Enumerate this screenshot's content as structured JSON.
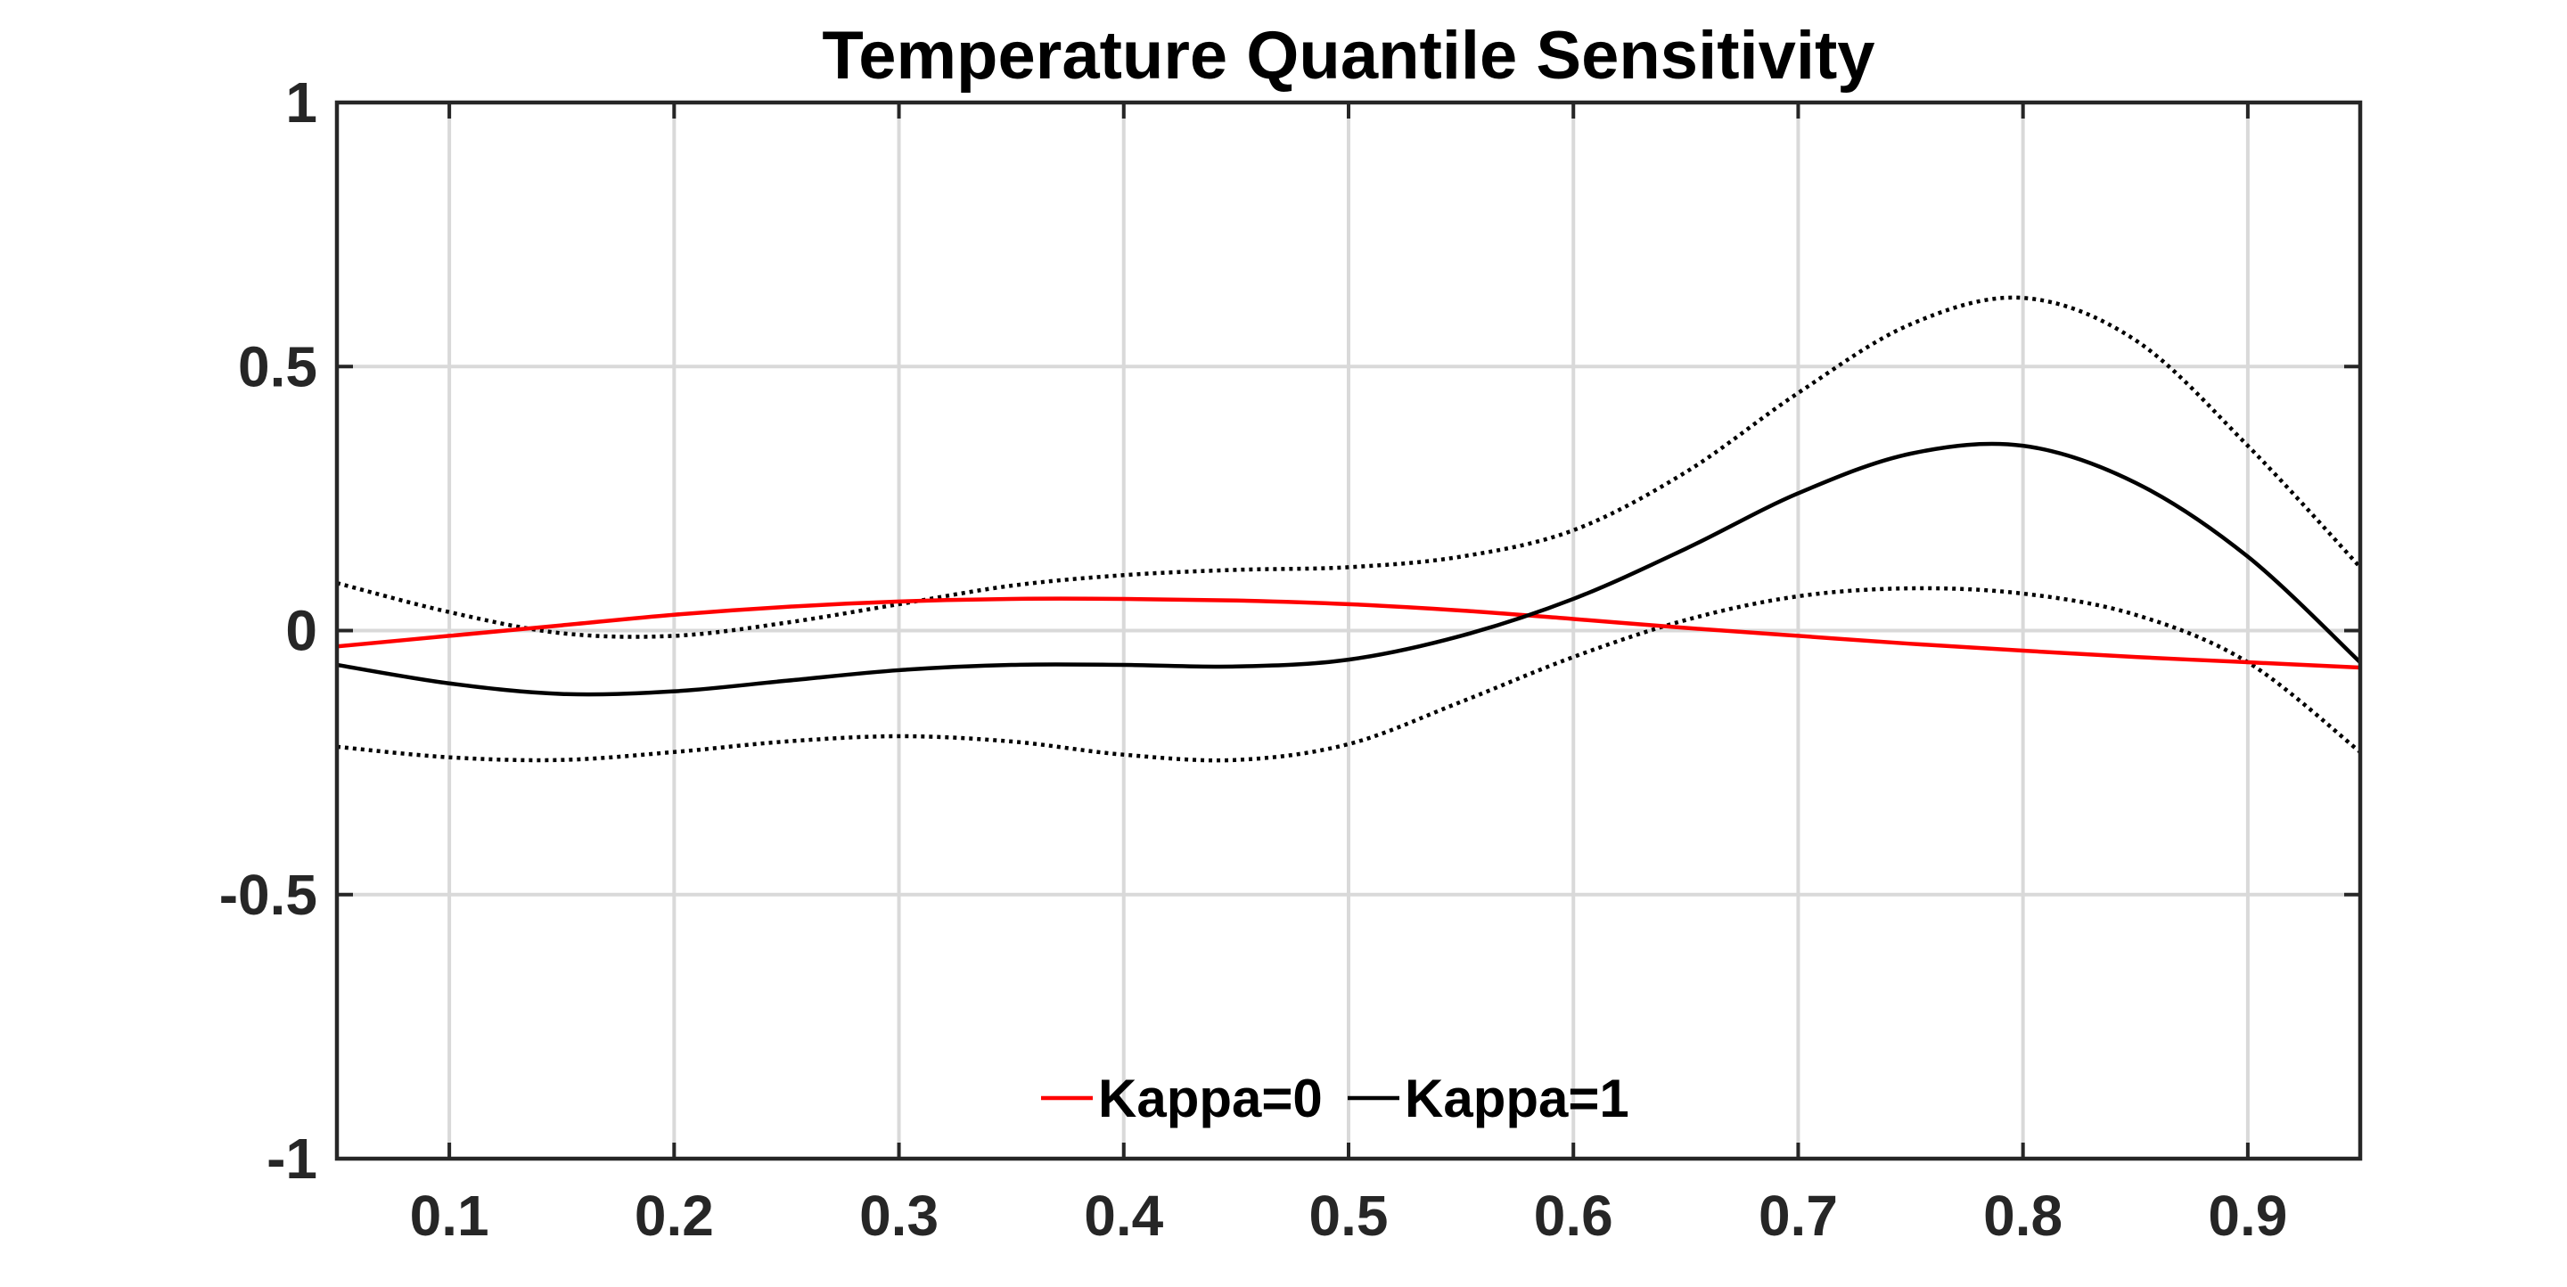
{
  "chart_data": {
    "type": "line",
    "title": "Temperature Quantile Sensitivity",
    "xlabel": "",
    "ylabel": "",
    "xlim": [
      0.05,
      0.95
    ],
    "ylim": [
      -1,
      1
    ],
    "grid": true,
    "legend_position": "bottom-center",
    "xticks": [
      0.1,
      0.2,
      0.3,
      0.4,
      0.5,
      0.6,
      0.7,
      0.8,
      0.9
    ],
    "xtick_labels": [
      "0.1",
      "0.2",
      "0.3",
      "0.4",
      "0.5",
      "0.6",
      "0.7",
      "0.8",
      "0.9"
    ],
    "yticks": [
      1,
      0.5,
      0,
      -0.5,
      -1
    ],
    "ytick_labels": [
      "1",
      "0.5",
      "0",
      "-0.5",
      "-1"
    ],
    "x": [
      0.05,
      0.1,
      0.15,
      0.2,
      0.25,
      0.3,
      0.35,
      0.4,
      0.45,
      0.5,
      0.55,
      0.6,
      0.65,
      0.7,
      0.75,
      0.8,
      0.85,
      0.9,
      0.95
    ],
    "series": [
      {
        "name": "Kappa=0",
        "color": "#ff0000",
        "style": "solid",
        "in_legend": true,
        "values": [
          -0.03,
          -0.01,
          0.01,
          0.03,
          0.045,
          0.055,
          0.06,
          0.06,
          0.057,
          0.05,
          0.038,
          0.022,
          0.005,
          -0.01,
          -0.025,
          -0.038,
          -0.05,
          -0.06,
          -0.07
        ]
      },
      {
        "name": "Kappa=1",
        "color": "#000000",
        "style": "solid",
        "in_legend": true,
        "values": [
          -0.065,
          -0.1,
          -0.12,
          -0.115,
          -0.095,
          -0.075,
          -0.065,
          -0.065,
          -0.068,
          -0.055,
          -0.01,
          0.06,
          0.155,
          0.26,
          0.335,
          0.35,
          0.28,
          0.14,
          -0.06
        ]
      },
      {
        "name": "Kappa=1 upper band",
        "color": "#000000",
        "style": "dotted",
        "in_legend": false,
        "values": [
          0.09,
          0.035,
          -0.005,
          -0.01,
          0.015,
          0.05,
          0.085,
          0.105,
          0.115,
          0.12,
          0.14,
          0.19,
          0.3,
          0.45,
          0.58,
          0.63,
          0.55,
          0.35,
          0.12
        ]
      },
      {
        "name": "Kappa=1 lower band",
        "color": "#000000",
        "style": "dotted",
        "in_legend": false,
        "values": [
          -0.22,
          -0.24,
          -0.245,
          -0.23,
          -0.21,
          -0.2,
          -0.21,
          -0.235,
          -0.245,
          -0.215,
          -0.135,
          -0.05,
          0.02,
          0.065,
          0.08,
          0.07,
          0.03,
          -0.06,
          -0.23
        ]
      }
    ]
  }
}
